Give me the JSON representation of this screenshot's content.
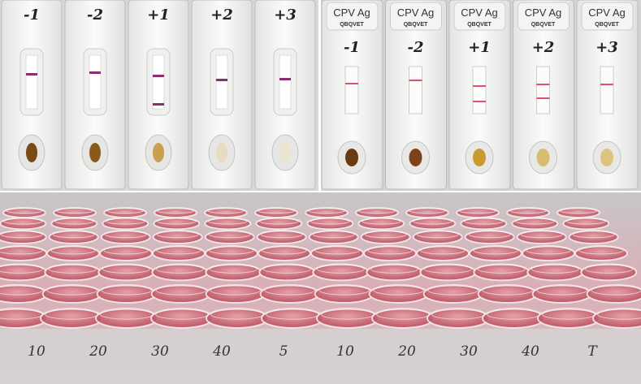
{
  "left_panel": {
    "strips": [
      {
        "label": "-1"
      },
      {
        "label": "-2"
      },
      {
        "label": "+1"
      },
      {
        "label": "+2"
      },
      {
        "label": "+3"
      }
    ]
  },
  "right_panel": {
    "strips": [
      {
        "brand": "CPV Ag",
        "maker": "QBQVET",
        "label": "-1"
      },
      {
        "brand": "CPV Ag",
        "maker": "QBQVET",
        "label": "-2"
      },
      {
        "brand": "CPV Ag",
        "maker": "QBQVET",
        "label": "+1"
      },
      {
        "brand": "CPV Ag",
        "maker": "QBQVET",
        "label": "+2"
      },
      {
        "brand": "CPV Ag",
        "maker": "QBQVET",
        "label": "+3"
      }
    ]
  },
  "plate": {
    "column_labels": [
      "10",
      "20",
      "30",
      "40",
      "5",
      "10",
      "20",
      "30",
      "40",
      "T"
    ]
  }
}
